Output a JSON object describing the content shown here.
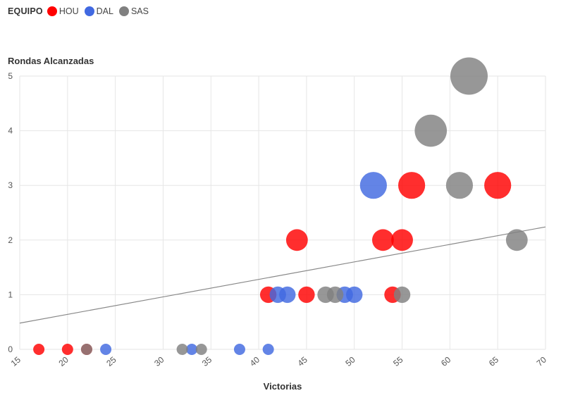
{
  "legend": {
    "title": "EQUIPO",
    "items": [
      {
        "label": "HOU",
        "color": "#ff0000"
      },
      {
        "label": "DAL",
        "color": "#4169e1"
      },
      {
        "label": "SAS",
        "color": "#808080"
      }
    ]
  },
  "chart_data": {
    "type": "scatter",
    "title": "",
    "xlabel": "Victorias",
    "ylabel": "Rondas Alcanzadas",
    "xlim": [
      15,
      70
    ],
    "ylim": [
      0,
      5
    ],
    "xticks": [
      "15",
      "20",
      "25",
      "30",
      "35",
      "40",
      "45",
      "50",
      "55",
      "60",
      "65",
      "70"
    ],
    "yticks": [
      "0",
      "1",
      "2",
      "3",
      "4",
      "5"
    ],
    "grid": true,
    "legend_position": "top-left",
    "bubble_size_encodes": "Rondas Alcanzadas",
    "trendline": {
      "x": [
        15,
        70
      ],
      "y": [
        0.48,
        2.24
      ],
      "color": "#888888"
    },
    "series": [
      {
        "name": "HOU",
        "color": "#ff0000",
        "points": [
          [
            17,
            0
          ],
          [
            20,
            0
          ],
          [
            22,
            0
          ],
          [
            41,
            1
          ],
          [
            44,
            2
          ],
          [
            45,
            1
          ],
          [
            53,
            2
          ],
          [
            54,
            1
          ],
          [
            55,
            2
          ],
          [
            56,
            3
          ],
          [
            65,
            3
          ]
        ]
      },
      {
        "name": "DAL",
        "color": "#4169e1",
        "points": [
          [
            24,
            0
          ],
          [
            33,
            0
          ],
          [
            38,
            0
          ],
          [
            41,
            0
          ],
          [
            42,
            1
          ],
          [
            43,
            1
          ],
          [
            49,
            1
          ],
          [
            50,
            1
          ],
          [
            52,
            3
          ]
        ]
      },
      {
        "name": "SAS",
        "color": "#808080",
        "points": [
          [
            22,
            0
          ],
          [
            32,
            0
          ],
          [
            34,
            0
          ],
          [
            47,
            1
          ],
          [
            48,
            1
          ],
          [
            55,
            1
          ],
          [
            58,
            4
          ],
          [
            61,
            3
          ],
          [
            62,
            5
          ],
          [
            67,
            2
          ]
        ]
      }
    ]
  }
}
